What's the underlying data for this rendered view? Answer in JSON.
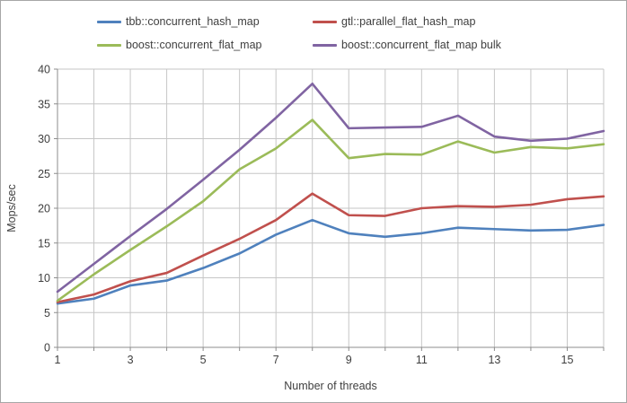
{
  "chart_data": {
    "type": "line",
    "x": [
      1,
      2,
      3,
      4,
      5,
      6,
      7,
      8,
      9,
      10,
      11,
      12,
      13,
      14,
      15,
      16
    ],
    "series": [
      {
        "name": "tbb::concurrent_hash_map",
        "color": "#4F81BD",
        "values": [
          6.3,
          7.0,
          8.9,
          9.6,
          11.4,
          13.5,
          16.2,
          18.3,
          16.4,
          15.9,
          16.4,
          17.2,
          17.0,
          16.8,
          16.9,
          17.6
        ]
      },
      {
        "name": "gtl::parallel_flat_hash_map",
        "color": "#C0504D",
        "values": [
          6.5,
          7.6,
          9.5,
          10.7,
          13.2,
          15.6,
          18.3,
          22.1,
          19.0,
          18.9,
          20.0,
          20.3,
          20.2,
          20.5,
          21.3,
          21.7
        ]
      },
      {
        "name": "boost::concurrent_flat_map",
        "color": "#9BBB59",
        "values": [
          6.7,
          10.5,
          14.0,
          17.4,
          21.0,
          25.6,
          28.6,
          32.7,
          27.2,
          27.8,
          27.7,
          29.6,
          28.0,
          28.8,
          28.6,
          29.2
        ]
      },
      {
        "name": "boost::concurrent_flat_map bulk",
        "color": "#8064A2",
        "values": [
          8.0,
          12.0,
          16.0,
          19.9,
          24.1,
          28.4,
          33.0,
          37.9,
          31.5,
          31.6,
          31.7,
          33.3,
          30.3,
          29.7,
          30.0,
          31.1
        ]
      }
    ],
    "title": "",
    "xlabel": "Number of threads",
    "ylabel": "Mops/sec",
    "xlim": [
      1,
      16
    ],
    "ylim": [
      0,
      40
    ],
    "y_tick_step": 5,
    "y_tick_labels": [
      "0",
      "5",
      "10",
      "15",
      "20",
      "25",
      "30",
      "35",
      "40"
    ],
    "x_label_ticks": [
      1,
      3,
      5,
      7,
      9,
      11,
      13,
      15
    ],
    "grid": true,
    "legend_position": "top",
    "colors": {
      "gridline": "#c6c6c6",
      "axis": "#8c8c8c",
      "tick_text": "#3f3f3f",
      "border": "#a6a6a6"
    }
  }
}
